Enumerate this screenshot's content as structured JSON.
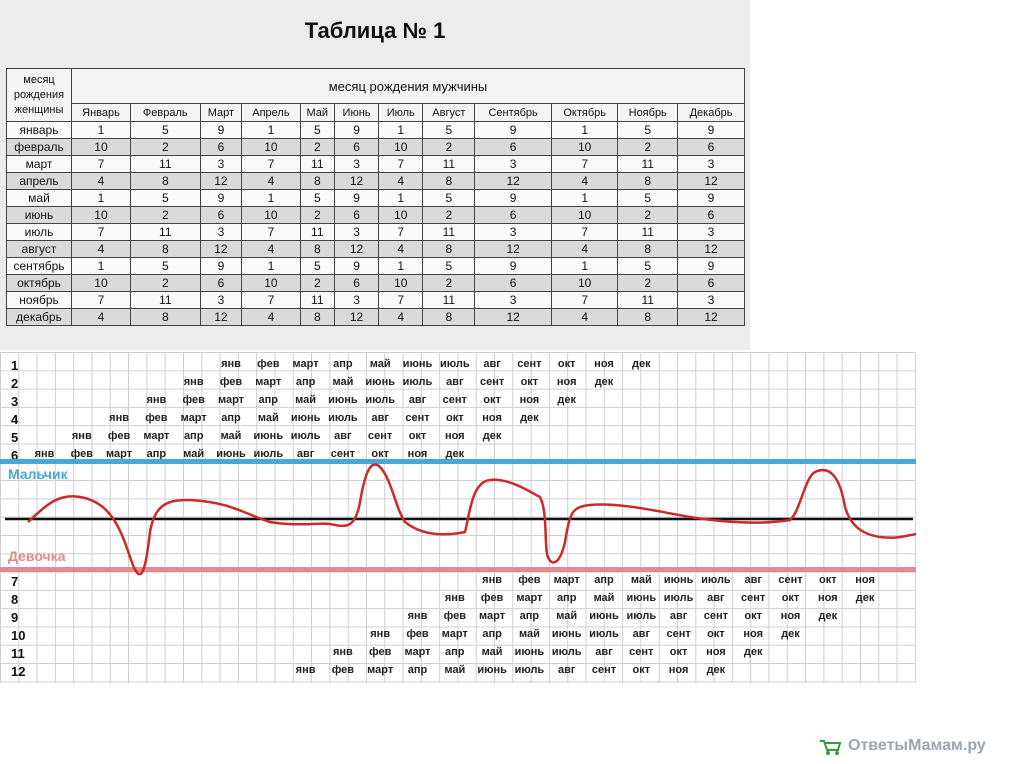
{
  "title": "Таблица № 1",
  "table": {
    "corner": "месяц рождения женщины",
    "header_span": "месяц рождения мужчины",
    "months": [
      "Январь",
      "Февраль",
      "Март",
      "Апрель",
      "Май",
      "Июнь",
      "Июль",
      "Август",
      "Сентябрь",
      "Октябрь",
      "Ноябрь",
      "Декабрь"
    ],
    "rows": [
      {
        "label": "январь",
        "values": [
          "1",
          "5",
          "9",
          "1",
          "5",
          "9",
          "1",
          "5",
          "9",
          "1",
          "5",
          "9"
        ]
      },
      {
        "label": "февраль",
        "values": [
          "10",
          "2",
          "6",
          "10",
          "2",
          "6",
          "10",
          "2",
          "6",
          "10",
          "2",
          "6"
        ]
      },
      {
        "label": "март",
        "values": [
          "7",
          "11",
          "3",
          "7",
          "11",
          "3",
          "7",
          "11",
          "3",
          "7",
          "11",
          "3"
        ]
      },
      {
        "label": "апрель",
        "values": [
          "4",
          "8",
          "12",
          "4",
          "8",
          "12",
          "4",
          "8",
          "12",
          "4",
          "8",
          "12"
        ]
      },
      {
        "label": "май",
        "values": [
          "1",
          "5",
          "9",
          "1",
          "5",
          "9",
          "1",
          "5",
          "9",
          "1",
          "5",
          "9"
        ]
      },
      {
        "label": "июнь",
        "values": [
          "10",
          "2",
          "6",
          "10",
          "2",
          "6",
          "10",
          "2",
          "6",
          "10",
          "2",
          "6"
        ]
      },
      {
        "label": "июль",
        "values": [
          "7",
          "11",
          "3",
          "7",
          "11",
          "3",
          "7",
          "11",
          "3",
          "7",
          "11",
          "3"
        ]
      },
      {
        "label": "август",
        "values": [
          "4",
          "8",
          "12",
          "4",
          "8",
          "12",
          "4",
          "8",
          "12",
          "4",
          "8",
          "12"
        ]
      },
      {
        "label": "сентябрь",
        "values": [
          "1",
          "5",
          "9",
          "1",
          "5",
          "9",
          "1",
          "5",
          "9",
          "1",
          "5",
          "9"
        ]
      },
      {
        "label": "октябрь",
        "values": [
          "10",
          "2",
          "6",
          "10",
          "2",
          "6",
          "10",
          "2",
          "6",
          "10",
          "2",
          "6"
        ]
      },
      {
        "label": "ноябрь",
        "values": [
          "7",
          "11",
          "3",
          "7",
          "11",
          "3",
          "7",
          "11",
          "3",
          "7",
          "11",
          "3"
        ]
      },
      {
        "label": "декабрь",
        "values": [
          "4",
          "8",
          "12",
          "4",
          "8",
          "12",
          "4",
          "8",
          "12",
          "4",
          "8",
          "12"
        ]
      }
    ]
  },
  "chart": {
    "month_abbr": [
      "янв",
      "фев",
      "март",
      "апр",
      "май",
      "июнь",
      "июль",
      "авг",
      "сент",
      "окт",
      "ноя",
      "дек"
    ],
    "top_row_numbers": [
      "1",
      "2",
      "3",
      "4",
      "5",
      "6"
    ],
    "bottom_row_numbers": [
      "7",
      "8",
      "9",
      "10",
      "11",
      "12"
    ],
    "boy_label": "Мальчик",
    "girl_label": "Девочка",
    "line_color": "#cc2a2a",
    "boy_color": "#4aa7d8",
    "girl_color": "#e28a8e"
  },
  "watermark": "ОтветыМамам.ру"
}
